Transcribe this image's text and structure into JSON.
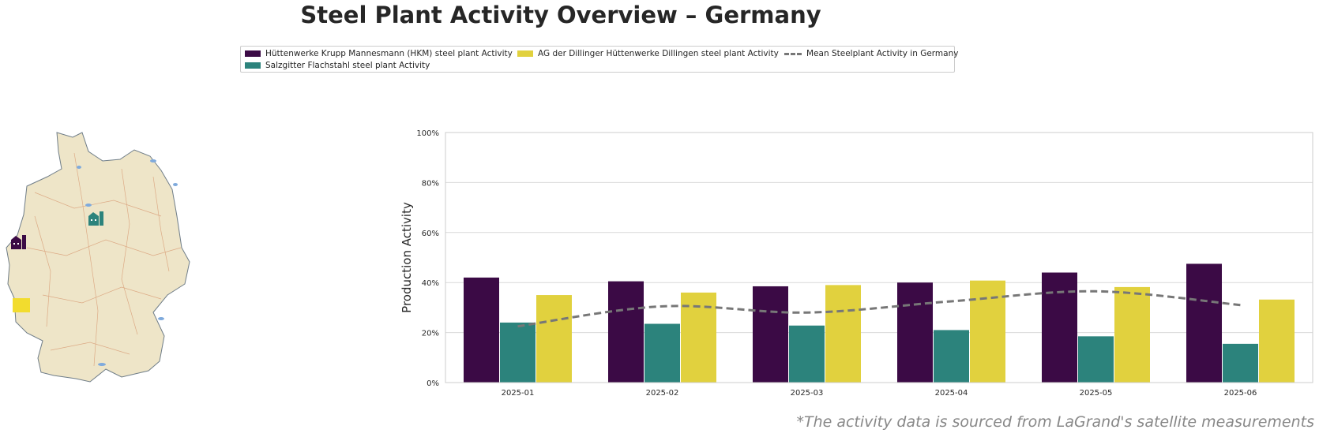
{
  "title": "Steel Plant Activity Overview – Germany",
  "footnote": "*The activity data is sourced from LaGrand's satellite measurements",
  "legend": [
    {
      "label": "Hüttenwerke Krupp Mannesmann (HKM) steel plant Activity",
      "color": "#3b0a45",
      "kind": "bar"
    },
    {
      "label": "Salzgitter Flachstahl steel plant Activity",
      "color": "#2c837c",
      "kind": "bar"
    },
    {
      "label": "AG der Dillinger Hüttenwerke Dillingen steel plant Activity",
      "color": "#e1d13e",
      "kind": "bar"
    },
    {
      "label": "Mean Steelplant Activity in Germany",
      "color": "#777777",
      "kind": "line"
    }
  ],
  "map_markers": [
    {
      "name": "hkm-plant-marker",
      "color": "#3b0a45"
    },
    {
      "name": "salzgitter-plant-marker",
      "color": "#2c837c"
    },
    {
      "name": "dillinger-plant-marker",
      "color": "#f2dc2e"
    }
  ],
  "chart_data": {
    "type": "bar",
    "categories": [
      "2025-01",
      "2025-02",
      "2025-03",
      "2025-04",
      "2025-05",
      "2025-06"
    ],
    "series": [
      {
        "name": "Hüttenwerke Krupp Mannesmann (HKM) steel plant Activity",
        "color": "#3b0a45",
        "values": [
          42,
          40.5,
          38.5,
          40,
          44,
          47.5
        ]
      },
      {
        "name": "Salzgitter Flachstahl steel plant Activity",
        "color": "#2c837c",
        "values": [
          24,
          23.5,
          22.8,
          21,
          18.5,
          15.5
        ]
      },
      {
        "name": "AG der Dillinger Hüttenwerke Dillingen steel plant Activity",
        "color": "#e1d13e",
        "values": [
          35,
          36,
          39,
          40.8,
          38.2,
          33.2
        ]
      }
    ],
    "line": {
      "name": "Mean Steelplant Activity in Germany",
      "color": "#777777",
      "values": [
        22.5,
        30.5,
        28,
        32.5,
        36.5,
        31
      ]
    },
    "ylabel": "Production Activity",
    "ylim": [
      0,
      100
    ],
    "yticks": [
      "0%",
      "20%",
      "40%",
      "60%",
      "80%",
      "100%"
    ],
    "grid": true,
    "legend_position": "top"
  }
}
